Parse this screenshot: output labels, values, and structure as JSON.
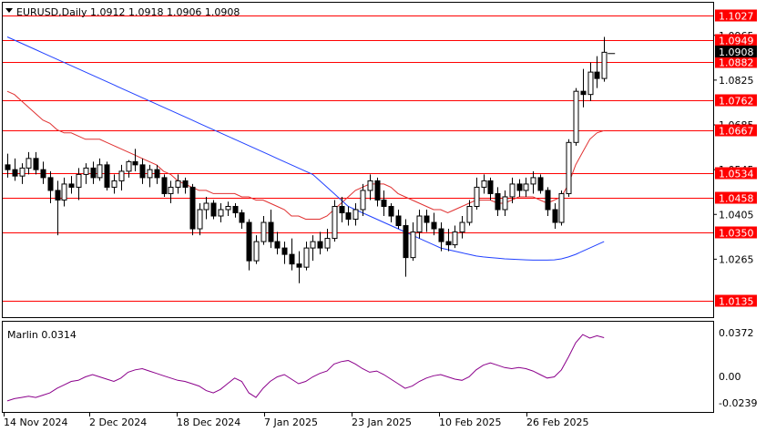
{
  "header": {
    "symbol_info": "EURUSD,Daily  1.0912 1.0918 1.0906 1.0908"
  },
  "indicator": {
    "label": "Marlin 0.0314",
    "scale_labels": [
      "0.0372",
      "0.00",
      "-0.0239"
    ]
  },
  "colors": {
    "level": "#ff0000",
    "bollinger": "#e03030",
    "moving_average": "#2040ff",
    "oscillator": "#8b008b",
    "candle": "#000000",
    "current_price_tag": "#000000"
  },
  "chart_data": {
    "type": "candlestick",
    "price_axis": {
      "tick_labels": [
        "1.0965",
        "1.0825",
        "1.0685",
        "1.0545",
        "1.0405",
        "1.0265"
      ],
      "current_price": "1.0908"
    },
    "levels": [
      {
        "value": 1.1027,
        "label": "1.1027"
      },
      {
        "value": 1.0949,
        "label": "1.0949"
      },
      {
        "value": 1.0882,
        "label": "1.0882"
      },
      {
        "value": 1.0762,
        "label": "1.0762"
      },
      {
        "value": 1.0667,
        "label": "1.0667"
      },
      {
        "value": 1.0534,
        "label": "1.0534"
      },
      {
        "value": 1.0458,
        "label": "1.0458"
      },
      {
        "value": 1.035,
        "label": "1.0350"
      },
      {
        "value": 1.0135,
        "label": "1.0135"
      }
    ],
    "date_labels": [
      "14 Nov 2024",
      "2 Dec 2024",
      "18 Dec 2024",
      "7 Jan 2025",
      "23 Jan 2025",
      "10 Feb 2025",
      "26 Feb 2025"
    ],
    "candles": [
      [
        1.056,
        1.0595,
        1.052,
        1.0545
      ],
      [
        1.0545,
        1.058,
        1.051,
        1.0525
      ],
      [
        1.0525,
        1.0565,
        1.05,
        1.055
      ],
      [
        1.055,
        1.06,
        1.053,
        1.058
      ],
      [
        1.058,
        1.06,
        1.053,
        1.0545
      ],
      [
        1.0545,
        1.057,
        1.05,
        1.052
      ],
      [
        1.052,
        1.054,
        1.044,
        1.048
      ],
      [
        1.048,
        1.051,
        1.034,
        1.045
      ],
      [
        1.045,
        1.052,
        1.043,
        1.05
      ],
      [
        1.05,
        1.0525,
        1.047,
        1.049
      ],
      [
        1.049,
        1.055,
        1.045,
        1.053
      ],
      [
        1.053,
        1.0565,
        1.05,
        1.055
      ],
      [
        1.055,
        1.057,
        1.05,
        1.052
      ],
      [
        1.052,
        1.058,
        1.051,
        1.056
      ],
      [
        1.056,
        1.057,
        1.048,
        1.049
      ],
      [
        1.049,
        1.053,
        1.047,
        1.051
      ],
      [
        1.051,
        1.056,
        1.048,
        1.054
      ],
      [
        1.054,
        1.0575,
        1.052,
        1.057
      ],
      [
        1.057,
        1.061,
        1.054,
        1.056
      ],
      [
        1.056,
        1.058,
        1.05,
        1.052
      ],
      [
        1.052,
        1.056,
        1.049,
        1.0545
      ],
      [
        1.0545,
        1.056,
        1.05,
        1.052
      ],
      [
        1.052,
        1.053,
        1.046,
        1.047
      ],
      [
        1.047,
        1.051,
        1.044,
        1.049
      ],
      [
        1.049,
        1.053,
        1.047,
        1.051
      ],
      [
        1.051,
        1.052,
        1.047,
        1.049
      ],
      [
        1.049,
        1.05,
        1.034,
        1.036
      ],
      [
        1.036,
        1.044,
        1.034,
        1.042
      ],
      [
        1.042,
        1.046,
        1.039,
        1.044
      ],
      [
        1.044,
        1.045,
        1.039,
        1.04
      ],
      [
        1.04,
        1.044,
        1.038,
        1.042
      ],
      [
        1.042,
        1.0445,
        1.04,
        1.043
      ],
      [
        1.043,
        1.044,
        1.0395,
        1.041
      ],
      [
        1.041,
        1.042,
        1.036,
        1.038
      ],
      [
        1.038,
        1.039,
        1.023,
        1.026
      ],
      [
        1.026,
        1.034,
        1.025,
        1.032
      ],
      [
        1.032,
        1.04,
        1.031,
        1.038
      ],
      [
        1.038,
        1.042,
        1.03,
        1.032
      ],
      [
        1.032,
        1.035,
        1.028,
        1.03
      ],
      [
        1.03,
        1.032,
        1.025,
        1.028
      ],
      [
        1.028,
        1.033,
        1.023,
        1.025
      ],
      [
        1.025,
        1.029,
        1.019,
        1.024
      ],
      [
        1.024,
        1.032,
        1.023,
        1.03
      ],
      [
        1.03,
        1.034,
        1.026,
        1.032
      ],
      [
        1.032,
        1.035,
        1.028,
        1.03
      ],
      [
        1.03,
        1.036,
        1.029,
        1.033
      ],
      [
        1.033,
        1.045,
        1.032,
        1.043
      ],
      [
        1.043,
        1.046,
        1.038,
        1.041
      ],
      [
        1.041,
        1.043,
        1.037,
        1.039
      ],
      [
        1.039,
        1.044,
        1.037,
        1.042
      ],
      [
        1.042,
        1.05,
        1.04,
        1.048
      ],
      [
        1.048,
        1.053,
        1.045,
        1.051
      ],
      [
        1.051,
        1.052,
        1.043,
        1.045
      ],
      [
        1.045,
        1.048,
        1.04,
        1.043
      ],
      [
        1.043,
        1.044,
        1.038,
        1.04
      ],
      [
        1.04,
        1.042,
        1.036,
        1.037
      ],
      [
        1.037,
        1.039,
        1.021,
        1.027
      ],
      [
        1.027,
        1.038,
        1.026,
        1.035
      ],
      [
        1.035,
        1.042,
        1.033,
        1.04
      ],
      [
        1.04,
        1.042,
        1.035,
        1.038
      ],
      [
        1.038,
        1.041,
        1.034,
        1.036
      ],
      [
        1.036,
        1.038,
        1.029,
        1.032
      ],
      [
        1.032,
        1.036,
        1.029,
        1.031
      ],
      [
        1.031,
        1.037,
        1.03,
        1.035
      ],
      [
        1.035,
        1.04,
        1.033,
        1.038
      ],
      [
        1.038,
        1.045,
        1.037,
        1.043
      ],
      [
        1.043,
        1.052,
        1.042,
        1.049
      ],
      [
        1.049,
        1.053,
        1.047,
        1.051
      ],
      [
        1.051,
        1.052,
        1.045,
        1.047
      ],
      [
        1.047,
        1.049,
        1.04,
        1.042
      ],
      [
        1.042,
        1.048,
        1.04,
        1.046
      ],
      [
        1.046,
        1.052,
        1.044,
        1.05
      ],
      [
        1.05,
        1.0515,
        1.046,
        1.048
      ],
      [
        1.048,
        1.052,
        1.046,
        1.05
      ],
      [
        1.05,
        1.054,
        1.047,
        1.052
      ],
      [
        1.052,
        1.053,
        1.047,
        1.048
      ],
      [
        1.048,
        1.049,
        1.04,
        1.042
      ],
      [
        1.042,
        1.044,
        1.036,
        1.038
      ],
      [
        1.038,
        1.048,
        1.037,
        1.047
      ],
      [
        1.047,
        1.064,
        1.046,
        1.063
      ],
      [
        1.063,
        1.08,
        1.062,
        1.079
      ],
      [
        1.079,
        1.086,
        1.074,
        1.078
      ],
      [
        1.078,
        1.088,
        1.076,
        1.085
      ],
      [
        1.085,
        1.09,
        1.08,
        1.083
      ],
      [
        1.083,
        1.096,
        1.082,
        1.0912
      ]
    ],
    "bollinger_upper": [
      1.079,
      1.078,
      1.076,
      1.074,
      1.072,
      1.07,
      1.069,
      1.067,
      1.066,
      1.066,
      1.065,
      1.064,
      1.064,
      1.064,
      1.063,
      1.062,
      1.061,
      1.06,
      1.059,
      1.058,
      1.057,
      1.056,
      1.054,
      1.053,
      1.051,
      1.05,
      1.049,
      1.048,
      1.048,
      1.047,
      1.047,
      1.047,
      1.047,
      1.046,
      1.046,
      1.045,
      1.045,
      1.044,
      1.043,
      1.042,
      1.04,
      1.04,
      1.039,
      1.039,
      1.039,
      1.04,
      1.042,
      1.044,
      1.046,
      1.048,
      1.049,
      1.05,
      1.05,
      1.05,
      1.049,
      1.047,
      1.046,
      1.045,
      1.044,
      1.043,
      1.042,
      1.042,
      1.041,
      1.042,
      1.043,
      1.044,
      1.045,
      1.045,
      1.045,
      1.044,
      1.044,
      1.045,
      1.046,
      1.046,
      1.046,
      1.045,
      1.044,
      1.045,
      1.046,
      1.05,
      1.056,
      1.06,
      1.064,
      1.066,
      1.0667
    ],
    "moving_average": [
      1.096,
      1.095,
      1.094,
      1.093,
      1.092,
      1.091,
      1.09,
      1.089,
      1.088,
      1.087,
      1.086,
      1.085,
      1.084,
      1.083,
      1.082,
      1.081,
      1.08,
      1.079,
      1.078,
      1.077,
      1.076,
      1.075,
      1.074,
      1.073,
      1.072,
      1.071,
      1.07,
      1.069,
      1.068,
      1.067,
      1.066,
      1.065,
      1.064,
      1.063,
      1.062,
      1.061,
      1.06,
      1.059,
      1.058,
      1.057,
      1.056,
      1.055,
      1.054,
      1.053,
      1.051,
      1.049,
      1.047,
      1.045,
      1.043,
      1.042,
      1.041,
      1.04,
      1.039,
      1.038,
      1.037,
      1.036,
      1.035,
      1.034,
      1.033,
      1.032,
      1.031,
      1.03,
      1.0295,
      1.029,
      1.0285,
      1.028,
      1.0275,
      1.0272,
      1.027,
      1.0268,
      1.0266,
      1.0265,
      1.0264,
      1.0263,
      1.0262,
      1.0262,
      1.0262,
      1.0263,
      1.0266,
      1.0272,
      1.028,
      1.029,
      1.03,
      1.031,
      1.032
    ],
    "oscillator": [
      -0.023,
      -0.021,
      -0.02,
      -0.019,
      -0.02,
      -0.018,
      -0.016,
      -0.012,
      -0.009,
      -0.006,
      -0.005,
      -0.002,
      0.0,
      -0.002,
      -0.004,
      -0.006,
      -0.003,
      0.002,
      0.004,
      0.005,
      0.003,
      0.001,
      -0.001,
      -0.003,
      -0.005,
      -0.006,
      -0.008,
      -0.01,
      -0.014,
      -0.016,
      -0.013,
      -0.008,
      -0.003,
      -0.006,
      -0.016,
      -0.02,
      -0.012,
      -0.006,
      -0.002,
      0.0,
      -0.004,
      -0.008,
      -0.006,
      -0.002,
      0.001,
      0.003,
      0.009,
      0.011,
      0.012,
      0.009,
      0.005,
      0.002,
      0.003,
      0.0,
      -0.004,
      -0.008,
      -0.012,
      -0.01,
      -0.006,
      -0.003,
      -0.001,
      0.0,
      -0.002,
      -0.004,
      -0.005,
      -0.002,
      0.004,
      0.008,
      0.01,
      0.008,
      0.006,
      0.005,
      0.006,
      0.005,
      0.003,
      0.0,
      -0.003,
      -0.002,
      0.004,
      0.015,
      0.027,
      0.034,
      0.031,
      0.033,
      0.0314
    ]
  }
}
